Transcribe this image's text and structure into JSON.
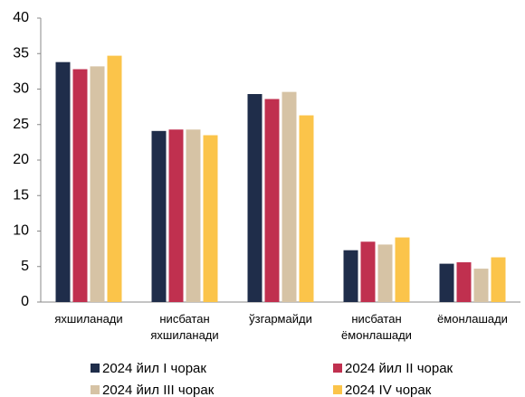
{
  "chart_data": {
    "type": "bar",
    "categories": [
      "яхшиланади",
      "нисбатан яхшиланади",
      "ўзгармайди",
      "нисбатан ёмонлашади",
      "ёмонлашади"
    ],
    "series": [
      {
        "name": "2024 йил I чорак",
        "color": "#1f2d4a",
        "values": [
          33.8,
          24.1,
          29.3,
          7.3,
          5.4
        ]
      },
      {
        "name": "2024 йил II чорак",
        "color": "#c0304f",
        "values": [
          32.8,
          24.3,
          28.6,
          8.5,
          5.6
        ]
      },
      {
        "name": "2024 йил III чорак",
        "color": "#d6c3a5",
        "values": [
          33.2,
          24.3,
          29.6,
          8.1,
          4.7
        ]
      },
      {
        "name": "2024 IV чорак",
        "color": "#fbc44a",
        "values": [
          34.7,
          23.5,
          26.3,
          9.1,
          6.3
        ]
      }
    ],
    "ylim": [
      0,
      40
    ],
    "yticks": [
      0,
      5,
      10,
      15,
      20,
      25,
      30,
      35,
      40
    ],
    "grid": false
  }
}
